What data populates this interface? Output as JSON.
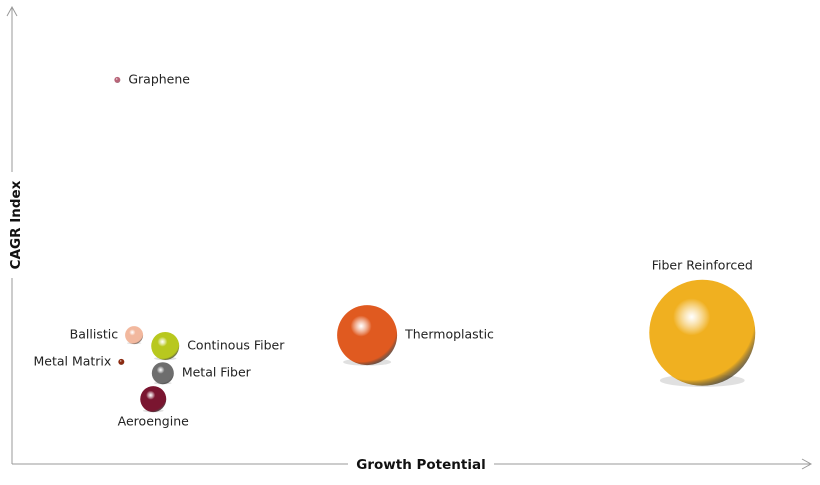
{
  "chart_data": {
    "type": "bubble",
    "x_label": "Growth Potential",
    "y_label": "CAGR Index",
    "xlim": [
      0,
      100
    ],
    "ylim": [
      0,
      100
    ],
    "points": [
      {
        "label": "Graphene",
        "x": 13.2,
        "y": 84.6,
        "size": 9,
        "color": "#b86478"
      },
      {
        "label": "Ballistic",
        "x": 15.3,
        "y": 28.4,
        "size": 81,
        "color": "#f2b89e"
      },
      {
        "label": "Metal Matrix",
        "x": 13.7,
        "y": 22.5,
        "size": 9,
        "color": "#8b2a10"
      },
      {
        "label": "Continous Fiber",
        "x": 19.2,
        "y": 26.0,
        "size": 196,
        "color": "#b8c81e"
      },
      {
        "label": "Metal Fiber",
        "x": 18.9,
        "y": 20.0,
        "size": 121,
        "color": "#6e6e6e"
      },
      {
        "label": "Aeroengine",
        "x": 17.7,
        "y": 14.3,
        "size": 169,
        "color": "#7a1530"
      },
      {
        "label": "Thermoplastic",
        "x": 44.5,
        "y": 28.4,
        "size": 900,
        "color": "#e05a20"
      },
      {
        "label": "Fiber Reinforced",
        "x": 86.5,
        "y": 28.9,
        "size": 2809,
        "color": "#f0b020"
      }
    ]
  }
}
